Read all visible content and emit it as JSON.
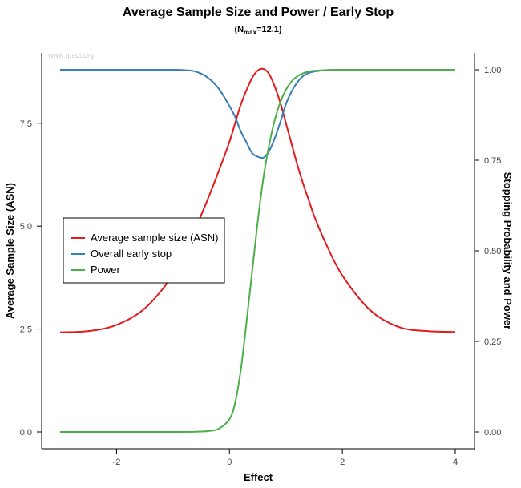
{
  "chart_data": {
    "type": "line",
    "title": "Average Sample Size and Power / Early Stop",
    "subtitle": {
      "prefix": "(N",
      "sub": "max",
      "suffix": "=12.1)"
    },
    "watermark": "www.rpact.org",
    "xlabel": "Effect",
    "ylabel_left": "Average Sample Size (ASN)",
    "ylabel_right": "Stopping Probability and Power",
    "xlim": [
      -3,
      4
    ],
    "ylim_left": [
      0,
      8.8
    ],
    "ylim_right": [
      0,
      1
    ],
    "x_ticks": [
      {
        "value": -2,
        "label": "-2"
      },
      {
        "value": 0,
        "label": "0"
      },
      {
        "value": 2,
        "label": "2"
      },
      {
        "value": 4,
        "label": "4"
      }
    ],
    "y_ticks_left": [
      {
        "value": 0,
        "label": "0.0"
      },
      {
        "value": 2.5,
        "label": "2.5"
      },
      {
        "value": 5,
        "label": "5.0"
      },
      {
        "value": 7.5,
        "label": "7.5"
      }
    ],
    "y_ticks_right": [
      {
        "value": 0,
        "label": "0.00"
      },
      {
        "value": 0.25,
        "label": "0.25"
      },
      {
        "value": 0.5,
        "label": "0.50"
      },
      {
        "value": 0.75,
        "label": "0.75"
      },
      {
        "value": 1,
        "label": "1.00"
      }
    ],
    "legend": {
      "placement": "center-left",
      "entries": [
        {
          "label": "Average sample size (ASN)",
          "color": "#e41a1c"
        },
        {
          "label": "Overall early stop",
          "color": "#377eb8"
        },
        {
          "label": "Power",
          "color": "#4daf4a"
        }
      ]
    },
    "x": [
      -3,
      -2.5,
      -2,
      -1.5,
      -1,
      -0.8,
      -0.6,
      -0.4,
      -0.2,
      0,
      0.1,
      0.2,
      0.3,
      0.4,
      0.5,
      0.6,
      0.7,
      0.8,
      0.9,
      1.0,
      1.1,
      1.2,
      1.3,
      1.4,
      1.5,
      1.7,
      2.0,
      2.5,
      3.0,
      3.5,
      4.0
    ],
    "series": [
      {
        "name": "Average sample size (ASN)",
        "axis": "left",
        "color": "#e41a1c",
        "values": [
          2.42,
          2.45,
          2.6,
          3.0,
          3.8,
          4.3,
          4.95,
          5.6,
          6.3,
          7.05,
          7.5,
          7.95,
          8.3,
          8.6,
          8.78,
          8.82,
          8.7,
          8.4,
          8.0,
          7.5,
          7.0,
          6.5,
          6.05,
          5.65,
          5.25,
          4.6,
          3.8,
          2.95,
          2.55,
          2.45,
          2.43
        ]
      },
      {
        "name": "Overall early stop",
        "axis": "right",
        "color": "#377eb8",
        "values": [
          1.0,
          1.0,
          1.0,
          1.0,
          1.0,
          0.999,
          0.995,
          0.98,
          0.95,
          0.9,
          0.87,
          0.83,
          0.8,
          0.77,
          0.76,
          0.757,
          0.775,
          0.81,
          0.855,
          0.905,
          0.94,
          0.965,
          0.982,
          0.991,
          0.995,
          0.999,
          1.0,
          1.0,
          1.0,
          1.0,
          1.0
        ]
      },
      {
        "name": "Power",
        "axis": "right",
        "color": "#4daf4a",
        "values": [
          0.0,
          0.0,
          0.0,
          0.0,
          0.0,
          0.0,
          0.0005,
          0.002,
          0.008,
          0.035,
          0.08,
          0.17,
          0.3,
          0.44,
          0.58,
          0.7,
          0.79,
          0.86,
          0.91,
          0.945,
          0.968,
          0.982,
          0.99,
          0.995,
          0.997,
          0.999,
          1.0,
          1.0,
          1.0,
          1.0,
          1.0
        ]
      }
    ]
  }
}
